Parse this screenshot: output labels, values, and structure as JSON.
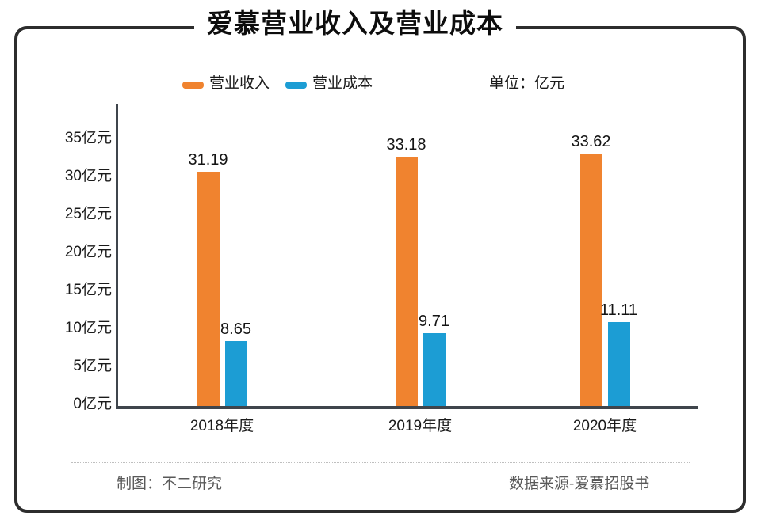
{
  "title": "爱慕营业收入及营业成本",
  "legend": {
    "series1_label": "营业收入",
    "series2_label": "营业成本",
    "unit_label": "单位：亿元"
  },
  "footer": {
    "credit": "制图：不二研究",
    "source": "数据来源-爱慕招股书"
  },
  "colors": {
    "revenue": "#F0832F",
    "cost": "#1C9DD4",
    "axis": "#3F454C",
    "frame_border": "#2D2D2D",
    "footer_text": "#595959"
  },
  "chart_data": {
    "type": "bar",
    "title": "爱慕营业收入及营业成本",
    "unit": "亿元",
    "categories": [
      "2018年度",
      "2019年度",
      "2020年度"
    ],
    "series": [
      {
        "name": "营业收入",
        "key": "revenue",
        "color": "#F0832F",
        "values": [
          31.19,
          33.18,
          33.62
        ]
      },
      {
        "name": "营业成本",
        "key": "cost",
        "color": "#1C9DD4",
        "values": [
          8.65,
          9.71,
          11.11
        ]
      }
    ],
    "y_ticks": [
      "35亿元",
      "30亿元",
      "25亿元",
      "20亿元",
      "15亿元",
      "10亿元",
      "5亿元",
      "0亿元"
    ],
    "y_tick_values": [
      35,
      30,
      25,
      20,
      15,
      10,
      5,
      0
    ],
    "ylim": [
      0,
      35
    ],
    "grid": false,
    "legend_position": "top",
    "value_labels": true
  }
}
